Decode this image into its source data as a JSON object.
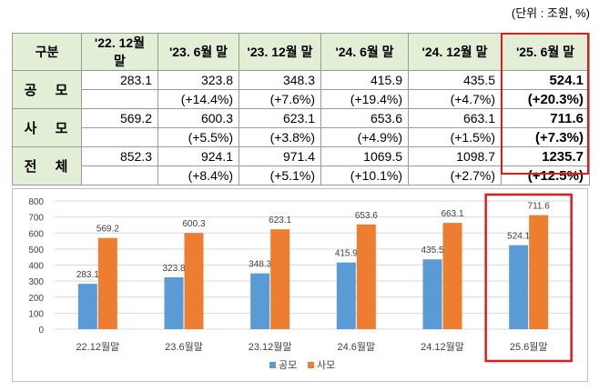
{
  "unit_label": "(단위 : 조원, %)",
  "table": {
    "header": [
      "구분",
      "'22. 12월 말",
      "'23. 6월 말",
      "'23. 12월 말",
      "'24. 6월 말",
      "'24. 12월 말",
      "'25. 6월 말"
    ],
    "rows": [
      {
        "label": "공 모",
        "values": [
          "283.1",
          "323.8",
          "348.3",
          "415.9",
          "435.5",
          "524.1"
        ],
        "changes": [
          "",
          "(+14.4%)",
          "(+7.6%)",
          "(+19.4%)",
          "(+4.7%)",
          "(+20.3%)"
        ]
      },
      {
        "label": "사 모",
        "values": [
          "569.2",
          "600.3",
          "623.1",
          "653.6",
          "663.1",
          "711.6"
        ],
        "changes": [
          "",
          "(+5.5%)",
          "(+3.8%)",
          "(+4.9%)",
          "(+1.5%)",
          "(+7.3%)"
        ]
      },
      {
        "label": "전 체",
        "values": [
          "852.3",
          "924.1",
          "971.4",
          "1069.5",
          "1098.7",
          "1235.7"
        ],
        "changes": [
          "",
          "(+8.4%)",
          "(+5.1%)",
          "(+10.1%)",
          "(+2.7%)",
          "(+12.5%)"
        ]
      }
    ],
    "highlight_column": "'25. 6월 말"
  },
  "colors": {
    "public": "#5b9bd5",
    "private": "#ed7d31",
    "highlight": "#e01c1c",
    "header_bg": "#e3eed6",
    "grid": "#d9d9d9"
  },
  "chart_data": {
    "type": "bar",
    "categories": [
      "22.12월말",
      "23.6월말",
      "23.12월말",
      "24.6월말",
      "24.12월말",
      "25.6월말"
    ],
    "series": [
      {
        "name": "공모",
        "values": [
          283.1,
          323.8,
          348.3,
          415.9,
          435.5,
          524.1
        ]
      },
      {
        "name": "사모",
        "values": [
          569.2,
          600.3,
          623.1,
          653.6,
          663.1,
          711.6
        ]
      }
    ],
    "y_ticks": [
      "0",
      "100",
      "200",
      "300",
      "400",
      "500",
      "600",
      "700",
      "800"
    ],
    "ylim": [
      0,
      800
    ],
    "grid": true,
    "legend": "bottom-center",
    "highlighted_category": "25.6월말"
  }
}
